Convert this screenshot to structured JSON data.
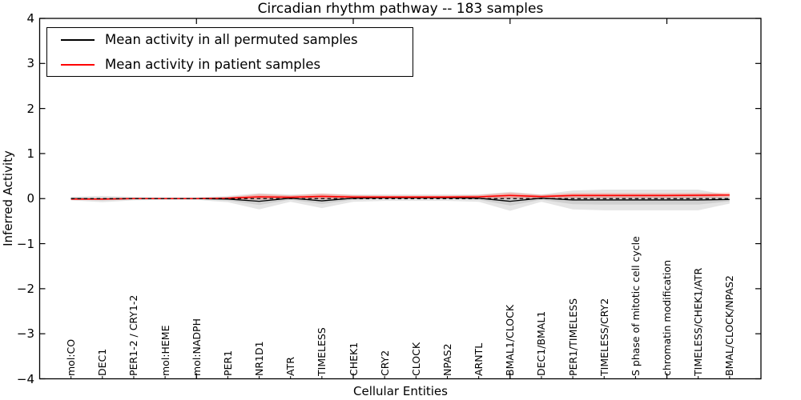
{
  "chart_data": {
    "type": "line",
    "title": "Circadian rhythm pathway -- 183 samples",
    "xlabel": "Cellular Entities",
    "ylabel": "Inferred Activity",
    "xlim": [
      0,
      23
    ],
    "ylim": [
      -4,
      4
    ],
    "xticks_major": [
      5,
      10,
      15,
      20
    ],
    "ytick_values": [
      4,
      3,
      2,
      1,
      0,
      -1,
      -2,
      -3,
      -4
    ],
    "ytick_labels": [
      "4",
      "3",
      "2",
      "1",
      "0",
      "−1",
      "−2",
      "−3",
      "−4"
    ],
    "grid": false,
    "legend_position": "upper left",
    "categories": [
      "mol:CO",
      "DEC1",
      "PER1-2 / CRY1-2",
      "mol:HEME",
      "mol:NADPH",
      "PER1",
      "NR1D1",
      "ATR",
      "TIMELESS",
      "CHEK1",
      "CRY2",
      "CLOCK",
      "NPAS2",
      "ARNTL",
      "BMAL1/CLOCK",
      "DEC1/BMAL1",
      "PER1/TIMELESS",
      "TIMELESS/CRY2",
      "S phase of mitotic cell cycle",
      "chromatin modification",
      "TIMELESS/CHEK1/ATR",
      "BMAL/CLOCK/NPAS2"
    ],
    "series": [
      {
        "name": "Mean activity in all permuted samples",
        "color": "#000000",
        "values": [
          0,
          -0.01,
          0,
          0,
          0,
          -0.01,
          -0.06,
          0.01,
          -0.05,
          0.01,
          0.02,
          0.02,
          0.02,
          0.01,
          -0.06,
          0.01,
          -0.03,
          -0.03,
          -0.03,
          -0.03,
          -0.03,
          -0.02
        ]
      },
      {
        "name": "Mean activity in patient samples",
        "color": "#ff0000",
        "values": [
          -0.01,
          -0.01,
          0,
          0,
          0,
          0.01,
          0.04,
          0.03,
          0.05,
          0.035,
          0.035,
          0.035,
          0.035,
          0.04,
          0.07,
          0.045,
          0.07,
          0.07,
          0.07,
          0.07,
          0.075,
          0.08
        ]
      }
    ],
    "bands": [
      {
        "name": "permuted-samples-range",
        "color": "#000000",
        "opacity": 0.1,
        "half_widths": [
          0.04,
          0.07,
          0.04,
          0.03,
          0.03,
          0.07,
          0.18,
          0.08,
          0.16,
          0.08,
          0.07,
          0.07,
          0.07,
          0.08,
          0.21,
          0.08,
          0.21,
          0.23,
          0.23,
          0.23,
          0.23,
          0.09
        ]
      },
      {
        "name": "patient-samples-range",
        "color": "#ff5544",
        "opacity": 0.32,
        "half_widths": [
          0.015,
          0.02,
          0.015,
          0.01,
          0.01,
          0.02,
          0.06,
          0.04,
          0.06,
          0.04,
          0.03,
          0.03,
          0.03,
          0.04,
          0.06,
          0.04,
          0.05,
          0.05,
          0.05,
          0.05,
          0.05,
          0.05
        ]
      }
    ],
    "zero_line": {
      "style": "dashed",
      "color": "#000000",
      "y": 0
    }
  },
  "legend": {
    "items": [
      {
        "label": "Mean activity in all permuted samples",
        "color": "#000000"
      },
      {
        "label": "Mean activity in patient samples",
        "color": "#ff0000"
      }
    ]
  }
}
